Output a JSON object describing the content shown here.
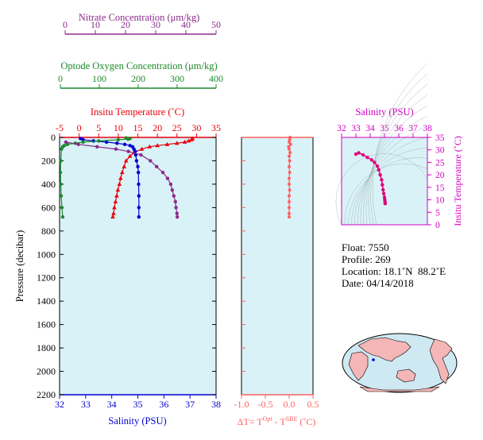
{
  "colors": {
    "nitrate": "#8b2a8b",
    "oxygen": "#1a8a2a",
    "temperature": "#e8000b",
    "salinity": "#0000d0",
    "dt": "#ff6060",
    "ts_axis": "#d000c0",
    "plot_bg": "#d9f2f7",
    "land": "#f4b6b6",
    "ocean": "#cfe9f3"
  },
  "main_axes": {
    "pressure_label": "Pressure (decibar)",
    "pressure_ticks": [
      "0",
      "200",
      "400",
      "600",
      "800",
      "1000",
      "1200",
      "1400",
      "1600",
      "1800",
      "2000",
      "2200"
    ],
    "nitrate_label": "Nitrate Concentration (μm/kg)",
    "nitrate_ticks": [
      "0",
      "10",
      "20",
      "30",
      "40",
      "50"
    ],
    "oxygen_label": "Optode Oxygen Concentration (μm/kg)",
    "oxygen_ticks": [
      "0",
      "100",
      "200",
      "300",
      "400"
    ],
    "temperature_label": "Insitu Temperature (˚C)",
    "temperature_ticks": [
      "-5",
      "0",
      "5",
      "10",
      "15",
      "20",
      "25",
      "30",
      "35"
    ],
    "salinity_label": "Salinity (PSU)",
    "salinity_ticks": [
      "32",
      "33",
      "34",
      "35",
      "36",
      "37",
      "38"
    ]
  },
  "dt_axes": {
    "label_prefix": "ΔT= T",
    "label_sup1": "Opt",
    "label_mid": " - T",
    "label_sup2": "SBE",
    "label_suffix": " (˚C)",
    "ticks": [
      "-1.0",
      "-0.5",
      "0.0",
      "0.5"
    ]
  },
  "ts_axes": {
    "salinity_label": "Salinity (PSU)",
    "salinity_ticks": [
      "32",
      "33",
      "34",
      "35",
      "36",
      "37",
      "38"
    ],
    "temperature_label": "Insitu Temperature (˚C)",
    "temperature_ticks": [
      "0",
      "5",
      "10",
      "15",
      "20",
      "25",
      "30",
      "35"
    ]
  },
  "info": {
    "float_label": "Float:",
    "float_value": "7550",
    "profile_label": "Profile:",
    "profile_value": "269",
    "location_label": "Location:",
    "location_value": "18.1˚N  88.2˚E",
    "date_label": "Date:",
    "date_value": "04/14/2018"
  },
  "chart_data": {
    "type": "scatter",
    "pressure_range": [
      0,
      2200
    ],
    "series": [
      {
        "name": "Insitu Temperature",
        "unit": "˚C",
        "range": [
          -5,
          35
        ],
        "points": [
          [
            29.0,
            10
          ],
          [
            28.7,
            20
          ],
          [
            28.0,
            30
          ],
          [
            27.0,
            40
          ],
          [
            25.0,
            50
          ],
          [
            22.5,
            60
          ],
          [
            20.0,
            70
          ],
          [
            18.0,
            80
          ],
          [
            16.0,
            100
          ],
          [
            14.0,
            130
          ],
          [
            13.0,
            160
          ],
          [
            12.0,
            200
          ],
          [
            11.5,
            250
          ],
          [
            11.0,
            300
          ],
          [
            10.6,
            350
          ],
          [
            10.3,
            400
          ],
          [
            9.9,
            450
          ],
          [
            9.6,
            500
          ],
          [
            9.3,
            550
          ],
          [
            9.0,
            600
          ],
          [
            8.8,
            650
          ],
          [
            8.6,
            680
          ]
        ]
      },
      {
        "name": "Salinity",
        "unit": "PSU",
        "range": [
          32,
          38
        ],
        "points": [
          [
            32.8,
            10
          ],
          [
            32.9,
            20
          ],
          [
            33.3,
            30
          ],
          [
            33.8,
            40
          ],
          [
            34.2,
            50
          ],
          [
            34.5,
            60
          ],
          [
            34.7,
            70
          ],
          [
            34.8,
            80
          ],
          [
            34.85,
            100
          ],
          [
            34.9,
            120
          ],
          [
            34.92,
            150
          ],
          [
            34.95,
            200
          ],
          [
            35.0,
            250
          ],
          [
            35.02,
            300
          ],
          [
            35.03,
            400
          ],
          [
            35.04,
            500
          ],
          [
            35.04,
            600
          ],
          [
            35.04,
            680
          ]
        ]
      },
      {
        "name": "Optode Oxygen Concentration",
        "unit": "μm/kg",
        "range": [
          0,
          400
        ],
        "points": [
          [
            170,
            5
          ],
          [
            180,
            10
          ],
          [
            175,
            15
          ],
          [
            150,
            20
          ],
          [
            100,
            30
          ],
          [
            60,
            40
          ],
          [
            40,
            50
          ],
          [
            20,
            60
          ],
          [
            12,
            70
          ],
          [
            8,
            80
          ],
          [
            5,
            100
          ],
          [
            3,
            200
          ],
          [
            2,
            300
          ],
          [
            3,
            400
          ],
          [
            4,
            500
          ],
          [
            6,
            600
          ],
          [
            8,
            680
          ]
        ]
      },
      {
        "name": "Nitrate Concentration",
        "unit": "μm/kg",
        "range": [
          0,
          50
        ],
        "points": [
          [
            2,
            40
          ],
          [
            6,
            60
          ],
          [
            12,
            80
          ],
          [
            18,
            100
          ],
          [
            22,
            120
          ],
          [
            26,
            150
          ],
          [
            29,
            200
          ],
          [
            31,
            250
          ],
          [
            33,
            300
          ],
          [
            34.5,
            350
          ],
          [
            35.5,
            400
          ],
          [
            36,
            450
          ],
          [
            36.5,
            500
          ],
          [
            37,
            550
          ],
          [
            37.2,
            600
          ],
          [
            37.5,
            650
          ],
          [
            37.6,
            680
          ]
        ]
      },
      {
        "name": "ΔT",
        "unit": "˚C",
        "range": [
          -1.0,
          0.5
        ],
        "points": [
          [
            0.02,
            0
          ],
          [
            0.01,
            20
          ],
          [
            0.0,
            40
          ],
          [
            0.03,
            60
          ],
          [
            -0.01,
            80
          ],
          [
            0.0,
            100
          ],
          [
            0.02,
            130
          ],
          [
            0.0,
            160
          ],
          [
            0.01,
            200
          ],
          [
            0.0,
            250
          ],
          [
            0.01,
            300
          ],
          [
            0.0,
            350
          ],
          [
            0.0,
            400
          ],
          [
            0.01,
            450
          ],
          [
            0.0,
            500
          ],
          [
            0.0,
            550
          ],
          [
            0.0,
            600
          ],
          [
            0.0,
            650
          ],
          [
            0.0,
            680
          ]
        ]
      }
    ],
    "ts_diagram": {
      "x_range": [
        32,
        38
      ],
      "y_range": [
        0,
        35
      ],
      "points": [
        [
          33.0,
          28.3
        ],
        [
          33.2,
          28.8
        ],
        [
          33.5,
          28.0
        ],
        [
          33.8,
          27.0
        ],
        [
          34.1,
          26.0
        ],
        [
          34.3,
          25.0
        ],
        [
          34.5,
          23.5
        ],
        [
          34.6,
          22.0
        ],
        [
          34.7,
          20.0
        ],
        [
          34.8,
          18.0
        ],
        [
          34.85,
          16.0
        ],
        [
          34.9,
          14.0
        ],
        [
          34.95,
          12.5
        ],
        [
          35.0,
          11.0
        ],
        [
          35.02,
          10.0
        ],
        [
          35.04,
          9.0
        ],
        [
          35.05,
          8.5
        ]
      ]
    }
  }
}
